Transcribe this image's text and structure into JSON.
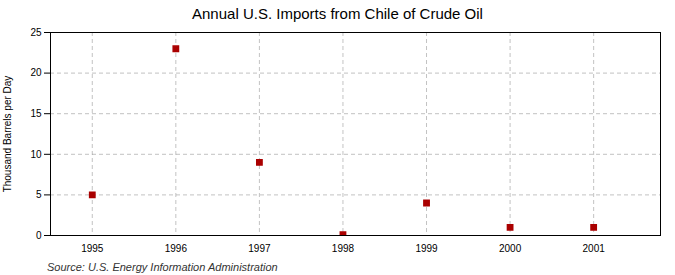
{
  "chart_data": {
    "type": "scatter",
    "title": "Annual U.S. Imports from Chile of Crude Oil",
    "ylabel": "Thousand Barrels per Day",
    "caption": "Source: U.S. Energy Information Administration",
    "x": [
      1995,
      1996,
      1997,
      1998,
      1999,
      2000,
      2001
    ],
    "values": [
      5,
      23,
      9,
      0.1,
      4,
      1,
      1
    ],
    "color": "#aa0000",
    "marker": "square",
    "xlim": [
      1994.5,
      2001.8
    ],
    "xticks": [
      1995,
      1996,
      1997,
      1998,
      1999,
      2000,
      2001
    ],
    "ylim": [
      0,
      25
    ],
    "yticks": [
      0,
      5,
      10,
      15,
      20,
      25
    ],
    "grid": true
  }
}
